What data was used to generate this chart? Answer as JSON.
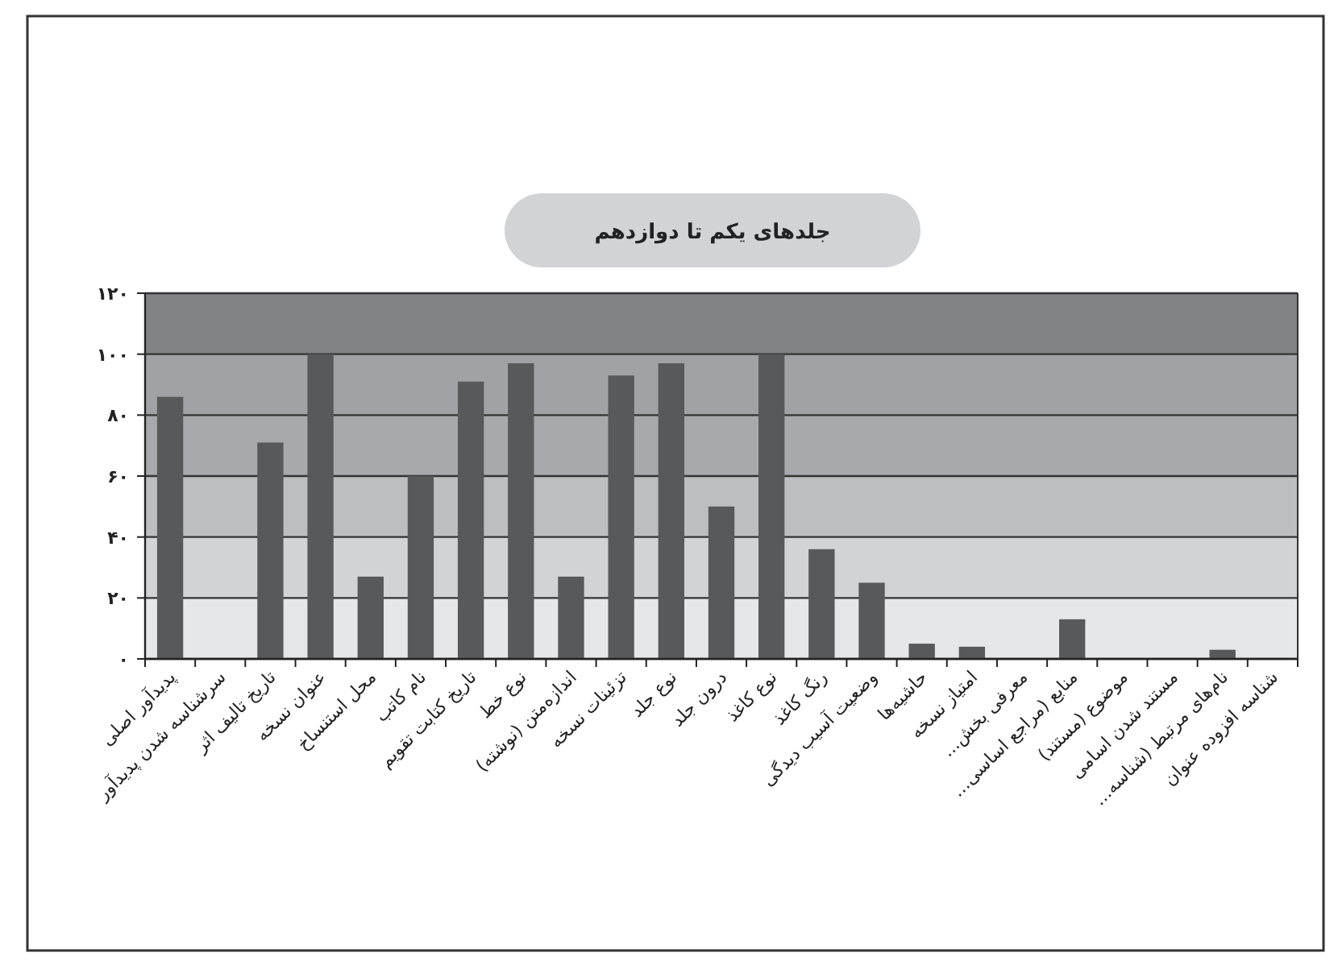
{
  "chart_data": {
    "type": "bar",
    "title": "جلدهای یکم تا دوازدهم",
    "categories": [
      "پدیدآور اصلی",
      "سرشناسه شدن پدیدآور",
      "تاریخ تالیف اثر",
      "عنوان نسخه",
      "محل استنساخ",
      "نام کاتب",
      "تاریخ کتابت تقویم",
      "نوع خط",
      "اندازه‌متن (نوشته)",
      "تزئینات نسخه",
      "نوع جلد",
      "درون جلد",
      "نوع کاغذ",
      "رنگ کاغذ",
      "وضعیت آسیب دیدگی",
      "حاشیه‌ها",
      "امتیاز نسخه",
      "معرفی بخش...",
      "منابع (مراجع اساسی...",
      "موضوع (مستند)",
      "مستند شدن اسامی",
      "نام‌های مرتبط (شناسه...",
      "شناسه افزوده عنوان"
    ],
    "values": [
      86,
      0,
      71,
      100,
      27,
      60,
      91,
      97,
      27,
      93,
      97,
      50,
      100,
      36,
      25,
      5,
      4,
      0,
      13,
      0,
      0,
      3,
      0
    ],
    "color": "#58595b",
    "ylim": [
      0,
      120
    ],
    "yticks": [
      {
        "value": 0,
        "label": "۰"
      },
      {
        "value": 20,
        "label": "۲۰"
      },
      {
        "value": 40,
        "label": "۴۰"
      },
      {
        "value": 60,
        "label": "۶۰"
      },
      {
        "value": 80,
        "label": "۸۰"
      },
      {
        "value": 100,
        "label": "۱۰۰"
      },
      {
        "value": 120,
        "label": "۱۲۰"
      }
    ],
    "grid": "y",
    "bands": [
      {
        "axis": "y",
        "from": 0,
        "to": 20,
        "color": "#e6e7e8"
      },
      {
        "axis": "y",
        "from": 20,
        "to": 40,
        "color": "#d1d3d4"
      },
      {
        "axis": "y",
        "from": 40,
        "to": 60,
        "color": "#bcbec0"
      },
      {
        "axis": "y",
        "from": 60,
        "to": 80,
        "color": "#a7a9ac"
      },
      {
        "axis": "y",
        "from": 80,
        "to": 100,
        "color": "#a0a2a5"
      },
      {
        "axis": "y",
        "from": 100,
        "to": 120,
        "color": "#808285"
      }
    ]
  }
}
